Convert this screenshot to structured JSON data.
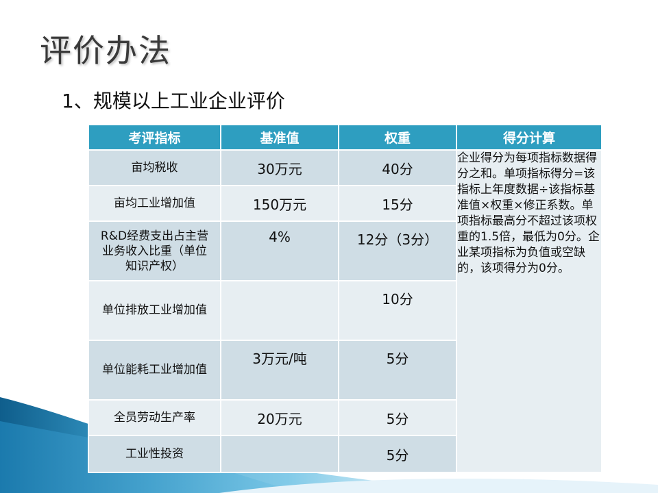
{
  "slide": {
    "title": "评价办法",
    "subtitle": "1、规模以上工业企业评价"
  },
  "table": {
    "headers": [
      "考评指标",
      "基准值",
      "权重",
      "得分计算"
    ],
    "rows": [
      {
        "indicator": "亩均税收",
        "baseline": "30万元",
        "weight": "40分"
      },
      {
        "indicator": "亩均工业增加值",
        "baseline": "150万元",
        "weight": "15分"
      },
      {
        "indicator": "R&D经费支出占主营业务收入比重（单位知识产权）",
        "baseline": "4%",
        "weight": "12分（3分）"
      },
      {
        "indicator": "单位排放工业增加值",
        "baseline": "",
        "weight": "10分"
      },
      {
        "indicator": "单位能耗工业增加值",
        "baseline": "3万元/吨",
        "weight": "5分"
      },
      {
        "indicator": "全员劳动生产率",
        "baseline": "20万元",
        "weight": "5分"
      },
      {
        "indicator": "工业性投资",
        "baseline": "",
        "weight": "5分"
      }
    ],
    "score_text": "企业得分为每项指标数据得分之和。单项指标得分=该指标上年度数据÷该指标基准值×权重×修正系数。单项指标最高分不超过该项权重的1.5倍，最低为0分。企业某项指标为负值或空缺的，该项得分为0分。"
  },
  "colors": {
    "header_bg": "#2e9ec0",
    "row_odd": "#cfdde5",
    "row_even": "#e7eef2",
    "decor_blue": "#1a6f9c"
  }
}
